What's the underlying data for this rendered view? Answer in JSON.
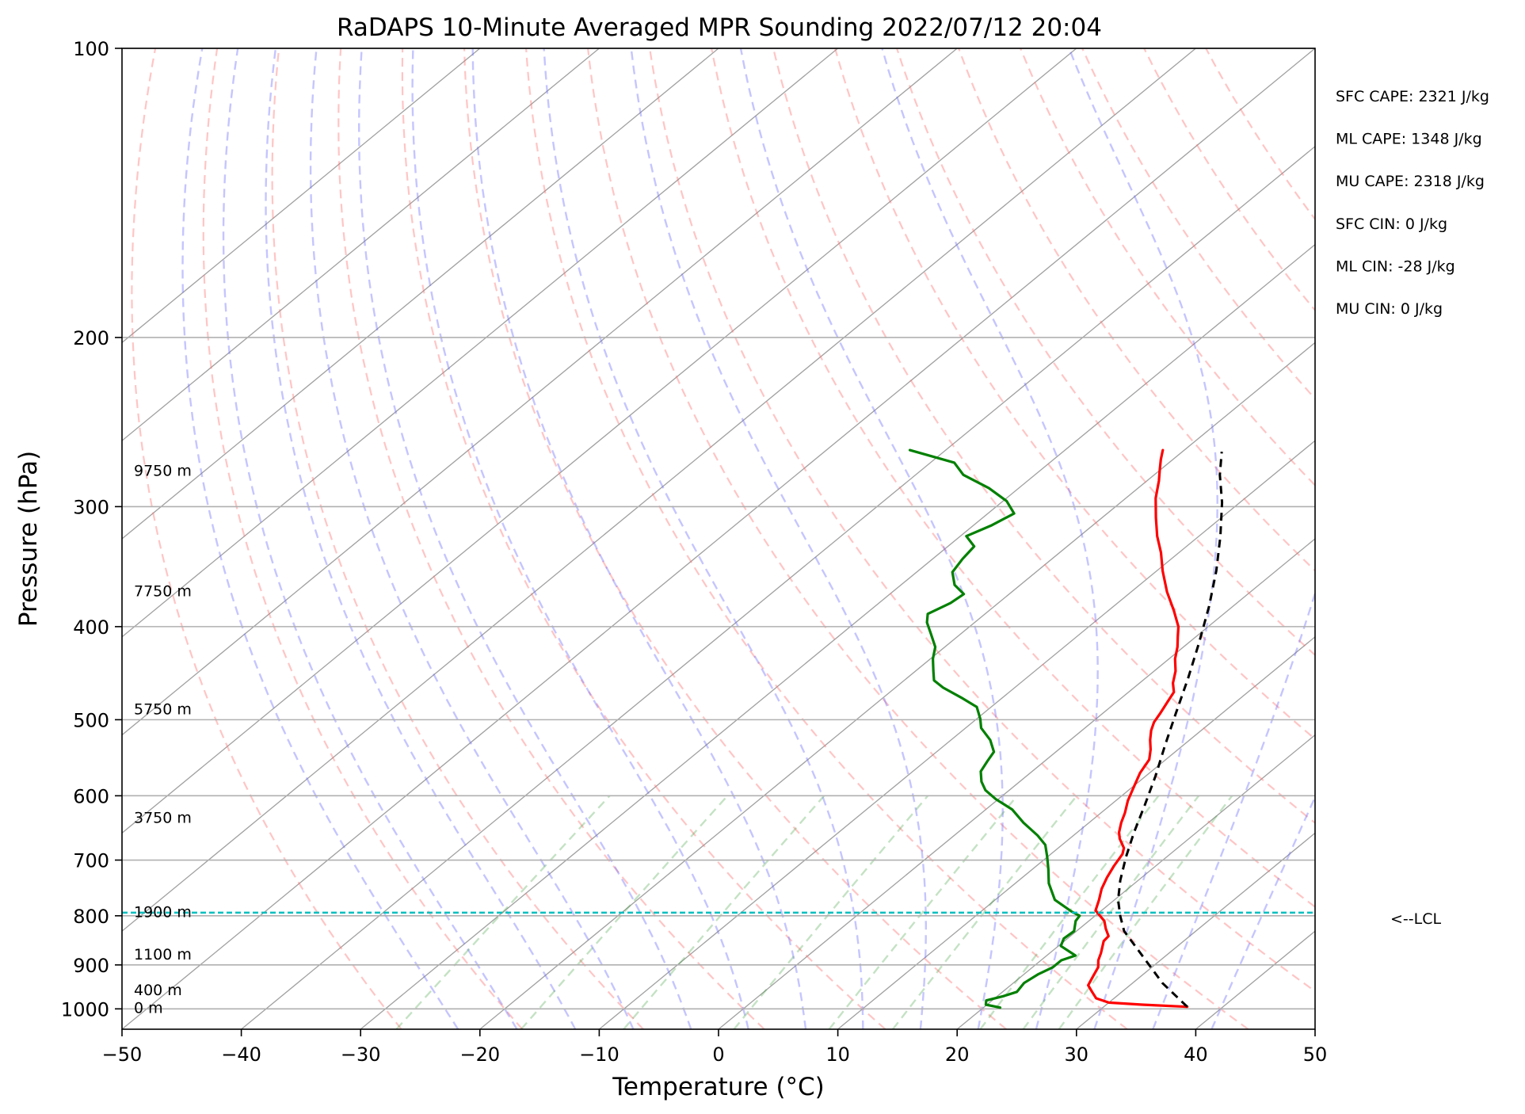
{
  "chart_data": {
    "type": "line",
    "title": "RaDAPS 10-Minute Averaged MPR Sounding 2022/07/12 20:04",
    "xlabel": "Temperature (°C)",
    "ylabel": "Pressure (hPa)",
    "xlim": [
      -50,
      50
    ],
    "ylim": [
      1050,
      100
    ],
    "yscale": "log",
    "skew": "skew-T log-P",
    "grid": true,
    "xticks": [
      -50,
      -40,
      -30,
      -20,
      -10,
      0,
      10,
      20,
      30,
      40,
      50
    ],
    "xtick_labels": [
      "−50",
      "−40",
      "−30",
      "−20",
      "−10",
      "0",
      "10",
      "20",
      "30",
      "40",
      "50"
    ],
    "yticks": [
      100,
      200,
      300,
      400,
      500,
      600,
      700,
      800,
      900,
      1000
    ],
    "ytick_labels": [
      "100",
      "200",
      "300",
      "400",
      "500",
      "600",
      "700",
      "800",
      "900",
      "1000"
    ],
    "isotherms_C": [
      -120,
      -110,
      -100,
      -90,
      -80,
      -70,
      -60,
      -50,
      -40,
      -30,
      -20,
      -10,
      0,
      10,
      20,
      30,
      40,
      50
    ],
    "dry_adiabats_C": [
      -30,
      -20,
      -10,
      0,
      10,
      20,
      30,
      40,
      50,
      60,
      70,
      80,
      90,
      100,
      110,
      120,
      130,
      140
    ],
    "moist_adiabats_C": [
      -25,
      -20,
      -15,
      -10,
      -5,
      0,
      5,
      10,
      15,
      20,
      25,
      30,
      35,
      40
    ],
    "mixing_ratio_lines_gkg": [
      0.4,
      1,
      2,
      4,
      7,
      10,
      16,
      20,
      24
    ],
    "series": [
      {
        "name": "",
        "color": "#ff0000",
        "points": [
          [
            37,
            995
          ],
          [
            33,
            990
          ],
          [
            30,
            985
          ],
          [
            28.5,
            975
          ],
          [
            27.5,
            960
          ],
          [
            26.5,
            945
          ],
          [
            26,
            925
          ],
          [
            25.5,
            905
          ],
          [
            24.8,
            890
          ],
          [
            24.3,
            875
          ],
          [
            23.7,
            860
          ],
          [
            23.3,
            850
          ],
          [
            23.2,
            840
          ],
          [
            22.2,
            825
          ],
          [
            21.3,
            810
          ],
          [
            19.5,
            790
          ],
          [
            18.7,
            770
          ],
          [
            17.8,
            750
          ],
          [
            17.1,
            730
          ],
          [
            16.5,
            710
          ],
          [
            16.0,
            690
          ],
          [
            15.5,
            680
          ],
          [
            14.2,
            665
          ],
          [
            13.5,
            655
          ],
          [
            12.7,
            640
          ],
          [
            12.0,
            625
          ],
          [
            11.0,
            607
          ],
          [
            10.0,
            585
          ],
          [
            9.2,
            568
          ],
          [
            8.6,
            550
          ],
          [
            7.7,
            537
          ],
          [
            6.7,
            525
          ],
          [
            5.8,
            513
          ],
          [
            5.2,
            503
          ],
          [
            4.8,
            492
          ],
          [
            4.3,
            480
          ],
          [
            3.8,
            468
          ],
          [
            2.8,
            458
          ],
          [
            1.8,
            445
          ],
          [
            0.5,
            432
          ],
          [
            -0.5,
            420
          ],
          [
            -1.5,
            410
          ],
          [
            -2.5,
            400
          ],
          [
            -4.5,
            385
          ],
          [
            -7.0,
            368
          ],
          [
            -9.5,
            350
          ],
          [
            -11.5,
            335
          ],
          [
            -13.5,
            322
          ],
          [
            -15.5,
            308
          ],
          [
            -17.5,
            294
          ],
          [
            -19.0,
            282
          ],
          [
            -20.0,
            275
          ],
          [
            -21.0,
            268
          ],
          [
            -21.8,
            262
          ]
        ]
      },
      {
        "name": "",
        "color": "#008000",
        "points": [
          [
            21.4,
            997
          ],
          [
            19.9,
            990
          ],
          [
            19.5,
            980
          ],
          [
            20.5,
            970
          ],
          [
            21.2,
            960
          ],
          [
            20.9,
            940
          ],
          [
            21.2,
            920
          ],
          [
            21.7,
            905
          ],
          [
            21.7,
            890
          ],
          [
            22.4,
            880
          ],
          [
            20.2,
            860
          ],
          [
            19.7,
            845
          ],
          [
            19.8,
            830
          ],
          [
            18.9,
            810
          ],
          [
            18.7,
            800
          ],
          [
            17.6,
            792
          ],
          [
            15.0,
            770
          ],
          [
            12.8,
            740
          ],
          [
            11.3,
            715
          ],
          [
            10.0,
            695
          ],
          [
            8.6,
            675
          ],
          [
            7.0,
            660
          ],
          [
            4.5,
            640
          ],
          [
            2.2,
            620
          ],
          [
            -0.2,
            605
          ],
          [
            -2.0,
            592
          ],
          [
            -3.2,
            580
          ],
          [
            -4.3,
            566
          ],
          [
            -4.8,
            552
          ],
          [
            -5.2,
            540
          ],
          [
            -6.7,
            525
          ],
          [
            -8.7,
            510
          ],
          [
            -9.7,
            499
          ],
          [
            -11.2,
            485
          ],
          [
            -13.5,
            474
          ],
          [
            -16.0,
            463
          ],
          [
            -17.5,
            455
          ],
          [
            -18.5,
            445
          ],
          [
            -19.8,
            432
          ],
          [
            -20.8,
            420
          ],
          [
            -22.5,
            407
          ],
          [
            -24.0,
            396
          ],
          [
            -24.8,
            388
          ],
          [
            -24.0,
            378
          ],
          [
            -23.8,
            370
          ],
          [
            -25.5,
            362
          ],
          [
            -27.0,
            351
          ],
          [
            -27.5,
            340
          ],
          [
            -27.8,
            330
          ],
          [
            -29.5,
            322
          ],
          [
            -28.5,
            314
          ],
          [
            -27.8,
            305
          ],
          [
            -29.7,
            296
          ],
          [
            -32.5,
            287
          ],
          [
            -36.0,
            278
          ],
          [
            -38.0,
            270
          ],
          [
            -43.0,
            262
          ]
        ]
      },
      {
        "name": "",
        "color": "#000000",
        "dashed": true,
        "points": [
          [
            37,
            995
          ],
          [
            32.5,
            940
          ],
          [
            28.0,
            880
          ],
          [
            24.0,
            830
          ],
          [
            22.1,
            800
          ],
          [
            20.3,
            770
          ],
          [
            18.5,
            735
          ],
          [
            16.6,
            695
          ],
          [
            14.8,
            656
          ],
          [
            12.9,
            614
          ],
          [
            10.8,
            572
          ],
          [
            8.5,
            532
          ],
          [
            6.1,
            492
          ],
          [
            3.6,
            453
          ],
          [
            0.9,
            416
          ],
          [
            -2.0,
            381
          ],
          [
            -5.0,
            350
          ],
          [
            -8.2,
            322
          ],
          [
            -11.5,
            297
          ],
          [
            -14.5,
            278
          ],
          [
            -16.7,
            263
          ]
        ]
      }
    ],
    "lcl": {
      "pressure": 794,
      "label": "<--LCL",
      "color": "#00bfbf"
    },
    "height_labels": [
      {
        "label": "9750 m",
        "pressure": 275
      },
      {
        "label": "7750 m",
        "pressure": 367
      },
      {
        "label": "5750 m",
        "pressure": 487
      },
      {
        "label": "3750 m",
        "pressure": 632
      },
      {
        "label": "1900 m",
        "pressure": 792
      },
      {
        "label": "1100 m",
        "pressure": 877
      },
      {
        "label": "400 m",
        "pressure": 955
      },
      {
        "label": "0 m",
        "pressure": 997
      }
    ],
    "annotations": [
      "SFC CAPE: 2321 J/kg",
      "ML CAPE: 1348 J/kg",
      "MU CAPE: 2318 J/kg",
      "SFC CIN: 0 J/kg",
      "ML CIN: -28 J/kg",
      "MU CIN: 0 J/kg"
    ]
  }
}
